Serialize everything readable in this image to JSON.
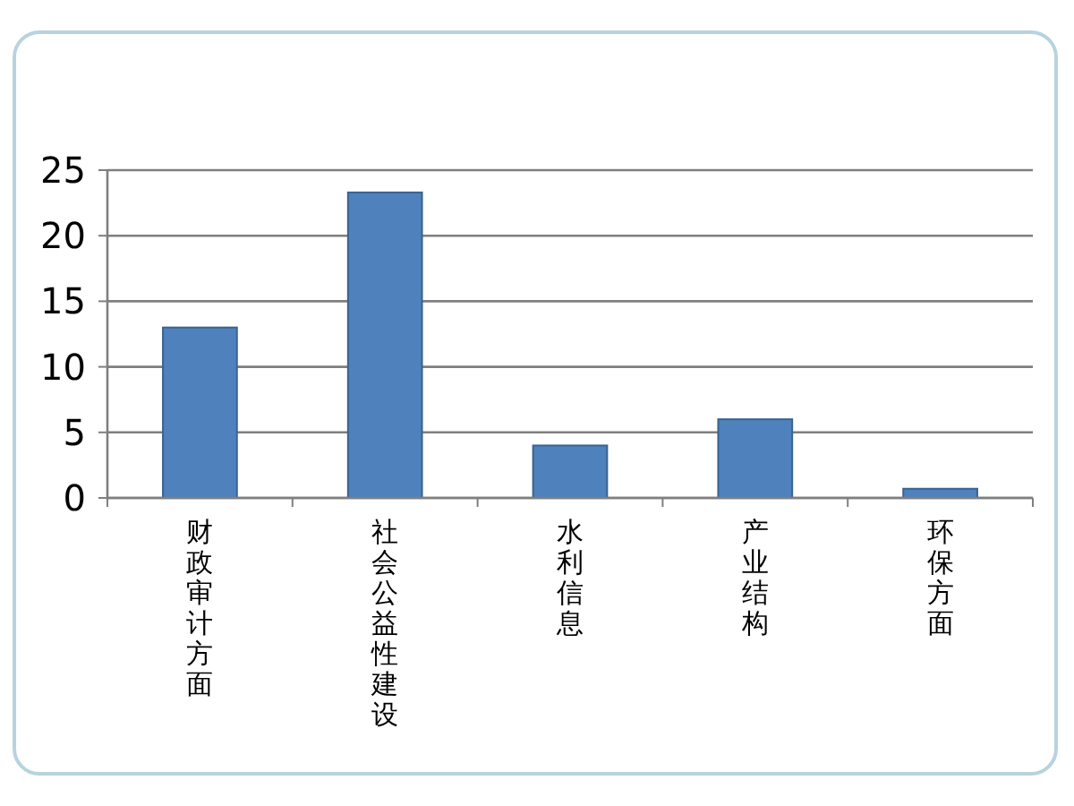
{
  "chart_data": {
    "type": "bar",
    "categories": [
      "财政审计方面",
      "社会公益性建设",
      "水利信息",
      "产业结构",
      "环保方面"
    ],
    "values": [
      13,
      23.3,
      4,
      6,
      0.7
    ],
    "color": "#4f81bd",
    "ylim": [
      0,
      25
    ],
    "yticks": [
      0,
      5,
      10,
      15,
      20,
      25
    ],
    "grid": "y"
  }
}
